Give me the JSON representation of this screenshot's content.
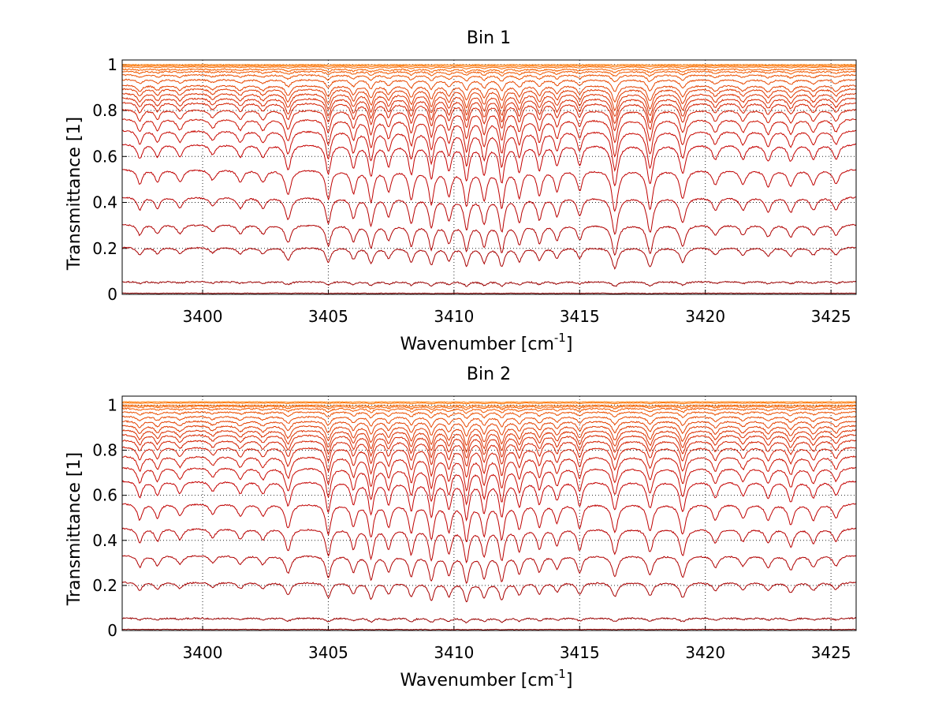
{
  "chart_data": [
    {
      "type": "line",
      "title": "Bin 1",
      "xlabel": "Wavenumber [cm",
      "xlabel_sup": "-1",
      "xlabel_tail": "]",
      "ylabel": "Transmittance [1]",
      "xlim": [
        3396.8,
        3426.0
      ],
      "ylim": [
        0,
        1.02
      ],
      "xticks": [
        3400,
        3405,
        3410,
        3415,
        3420,
        3425
      ],
      "yticks": [
        0,
        0.2,
        0.4,
        0.6,
        0.8,
        1
      ],
      "ytick_labels": [
        "0",
        "0.2",
        "0.4",
        "0.6",
        "0.8",
        "1"
      ],
      "grid": true,
      "series_colors": [
        "#8b0000",
        "#9a0000",
        "#a80000",
        "#b00000",
        "#b80000",
        "#bf0000",
        "#c40000",
        "#c80800",
        "#cc1000",
        "#d01800",
        "#d42000",
        "#d82800",
        "#dc3000",
        "#e03800",
        "#e44000",
        "#e84800",
        "#ec5000",
        "#f05800",
        "#f46000",
        "#f86800",
        "#fb7000",
        "#ff7a00"
      ],
      "series": [
        {
          "baseline": 0.005,
          "depth": 0.002
        },
        {
          "baseline": 0.055,
          "depth": 0.02
        },
        {
          "baseline": 0.205,
          "depth": 0.09
        },
        {
          "baseline": 0.305,
          "depth": 0.13
        },
        {
          "baseline": 0.425,
          "depth": 0.16
        },
        {
          "baseline": 0.545,
          "depth": 0.18
        },
        {
          "baseline": 0.655,
          "depth": 0.18
        },
        {
          "baseline": 0.715,
          "depth": 0.17
        },
        {
          "baseline": 0.765,
          "depth": 0.16
        },
        {
          "baseline": 0.805,
          "depth": 0.14
        },
        {
          "baseline": 0.835,
          "depth": 0.12
        },
        {
          "baseline": 0.855,
          "depth": 0.11
        },
        {
          "baseline": 0.875,
          "depth": 0.1
        },
        {
          "baseline": 0.895,
          "depth": 0.09
        },
        {
          "baseline": 0.91,
          "depth": 0.07
        },
        {
          "baseline": 0.935,
          "depth": 0.05
        },
        {
          "baseline": 0.955,
          "depth": 0.03
        },
        {
          "baseline": 0.97,
          "depth": 0.02
        },
        {
          "baseline": 0.98,
          "depth": 0.015
        },
        {
          "baseline": 0.99,
          "depth": 0.01
        },
        {
          "baseline": 0.995,
          "depth": 0.005
        },
        {
          "baseline": 1.0,
          "depth": 0.003
        }
      ],
      "absorption_lines": [
        {
          "x": 3397.5,
          "w": 0.3,
          "s": 0.35
        },
        {
          "x": 3398.2,
          "w": 0.3,
          "s": 0.3
        },
        {
          "x": 3399.1,
          "w": 0.35,
          "s": 0.3
        },
        {
          "x": 3400.4,
          "w": 0.35,
          "s": 0.25
        },
        {
          "x": 3401.5,
          "w": 0.35,
          "s": 0.3
        },
        {
          "x": 3402.4,
          "w": 0.35,
          "s": 0.3
        },
        {
          "x": 3403.4,
          "w": 0.35,
          "s": 0.6
        },
        {
          "x": 3405.0,
          "w": 0.3,
          "s": 0.7
        },
        {
          "x": 3406.0,
          "w": 0.3,
          "s": 0.55
        },
        {
          "x": 3406.7,
          "w": 0.3,
          "s": 0.75
        },
        {
          "x": 3407.4,
          "w": 0.3,
          "s": 0.5
        },
        {
          "x": 3408.3,
          "w": 0.3,
          "s": 0.7
        },
        {
          "x": 3409.1,
          "w": 0.3,
          "s": 0.8
        },
        {
          "x": 3409.8,
          "w": 0.3,
          "s": 0.6
        },
        {
          "x": 3410.5,
          "w": 0.3,
          "s": 0.85
        },
        {
          "x": 3411.2,
          "w": 0.3,
          "s": 0.7
        },
        {
          "x": 3411.9,
          "w": 0.3,
          "s": 0.9
        },
        {
          "x": 3412.6,
          "w": 0.3,
          "s": 0.65
        },
        {
          "x": 3413.4,
          "w": 0.3,
          "s": 0.6
        },
        {
          "x": 3414.1,
          "w": 0.3,
          "s": 0.5
        },
        {
          "x": 3415.0,
          "w": 0.3,
          "s": 0.5
        },
        {
          "x": 3416.4,
          "w": 0.35,
          "s": 1.0
        },
        {
          "x": 3417.8,
          "w": 0.35,
          "s": 0.95
        },
        {
          "x": 3419.1,
          "w": 0.35,
          "s": 0.7
        },
        {
          "x": 3420.4,
          "w": 0.35,
          "s": 0.35
        },
        {
          "x": 3421.5,
          "w": 0.35,
          "s": 0.35
        },
        {
          "x": 3422.5,
          "w": 0.35,
          "s": 0.4
        },
        {
          "x": 3423.4,
          "w": 0.35,
          "s": 0.4
        },
        {
          "x": 3424.3,
          "w": 0.35,
          "s": 0.35
        },
        {
          "x": 3425.2,
          "w": 0.35,
          "s": 0.35
        }
      ]
    },
    {
      "type": "line",
      "title": "Bin 2",
      "xlabel": "Wavenumber [cm",
      "xlabel_sup": "-1",
      "xlabel_tail": "]",
      "ylabel": "Transmittance [1]",
      "xlim": [
        3396.8,
        3426.0
      ],
      "ylim": [
        0,
        1.04
      ],
      "xticks": [
        3400,
        3405,
        3410,
        3415,
        3420,
        3425
      ],
      "yticks": [
        0,
        0.2,
        0.4,
        0.6,
        0.8,
        1
      ],
      "ytick_labels": [
        "0",
        "0.2",
        "0.4",
        "0.6",
        "0.8",
        "1"
      ],
      "grid": true,
      "series_colors": [
        "#8b0000",
        "#9a0000",
        "#a80000",
        "#b00000",
        "#b80000",
        "#bf0000",
        "#c40000",
        "#c80800",
        "#cc1000",
        "#d01800",
        "#d42000",
        "#d82800",
        "#dc3000",
        "#e03800",
        "#e44000",
        "#e84800",
        "#ec5000",
        "#f05800",
        "#f46000",
        "#f86800",
        "#fb7000",
        "#ff7a00"
      ],
      "series": [
        {
          "baseline": 0.005,
          "depth": 0.002
        },
        {
          "baseline": 0.055,
          "depth": 0.02
        },
        {
          "baseline": 0.215,
          "depth": 0.09
        },
        {
          "baseline": 0.335,
          "depth": 0.13
        },
        {
          "baseline": 0.455,
          "depth": 0.16
        },
        {
          "baseline": 0.565,
          "depth": 0.18
        },
        {
          "baseline": 0.665,
          "depth": 0.18
        },
        {
          "baseline": 0.725,
          "depth": 0.17
        },
        {
          "baseline": 0.775,
          "depth": 0.16
        },
        {
          "baseline": 0.815,
          "depth": 0.14
        },
        {
          "baseline": 0.845,
          "depth": 0.12
        },
        {
          "baseline": 0.87,
          "depth": 0.11
        },
        {
          "baseline": 0.89,
          "depth": 0.1
        },
        {
          "baseline": 0.91,
          "depth": 0.09
        },
        {
          "baseline": 0.93,
          "depth": 0.07
        },
        {
          "baseline": 0.95,
          "depth": 0.05
        },
        {
          "baseline": 0.97,
          "depth": 0.03
        },
        {
          "baseline": 0.985,
          "depth": 0.02
        },
        {
          "baseline": 0.995,
          "depth": 0.015
        },
        {
          "baseline": 1.0,
          "depth": 0.01
        },
        {
          "baseline": 1.01,
          "depth": 0.005
        },
        {
          "baseline": 1.015,
          "depth": 0.003
        }
      ],
      "absorption_lines": [
        {
          "x": 3397.5,
          "w": 0.3,
          "s": 0.4
        },
        {
          "x": 3398.2,
          "w": 0.3,
          "s": 0.35
        },
        {
          "x": 3399.1,
          "w": 0.35,
          "s": 0.3
        },
        {
          "x": 3400.4,
          "w": 0.35,
          "s": 0.25
        },
        {
          "x": 3401.5,
          "w": 0.35,
          "s": 0.3
        },
        {
          "x": 3402.4,
          "w": 0.35,
          "s": 0.3
        },
        {
          "x": 3403.4,
          "w": 0.35,
          "s": 0.6
        },
        {
          "x": 3405.0,
          "w": 0.3,
          "s": 0.75
        },
        {
          "x": 3406.0,
          "w": 0.3,
          "s": 0.55
        },
        {
          "x": 3406.7,
          "w": 0.3,
          "s": 0.8
        },
        {
          "x": 3407.4,
          "w": 0.3,
          "s": 0.55
        },
        {
          "x": 3408.3,
          "w": 0.3,
          "s": 0.7
        },
        {
          "x": 3409.1,
          "w": 0.3,
          "s": 0.85
        },
        {
          "x": 3409.8,
          "w": 0.3,
          "s": 0.65
        },
        {
          "x": 3410.5,
          "w": 0.3,
          "s": 0.9
        },
        {
          "x": 3411.2,
          "w": 0.3,
          "s": 0.75
        },
        {
          "x": 3411.9,
          "w": 0.3,
          "s": 0.85
        },
        {
          "x": 3412.6,
          "w": 0.3,
          "s": 0.6
        },
        {
          "x": 3413.4,
          "w": 0.3,
          "s": 0.55
        },
        {
          "x": 3414.1,
          "w": 0.3,
          "s": 0.45
        },
        {
          "x": 3415.0,
          "w": 0.3,
          "s": 0.6
        },
        {
          "x": 3416.4,
          "w": 0.35,
          "s": 0.7
        },
        {
          "x": 3417.8,
          "w": 0.35,
          "s": 0.65
        },
        {
          "x": 3419.1,
          "w": 0.35,
          "s": 0.75
        },
        {
          "x": 3420.4,
          "w": 0.35,
          "s": 0.4
        },
        {
          "x": 3421.5,
          "w": 0.35,
          "s": 0.35
        },
        {
          "x": 3422.5,
          "w": 0.35,
          "s": 0.4
        },
        {
          "x": 3423.4,
          "w": 0.35,
          "s": 0.5
        },
        {
          "x": 3424.3,
          "w": 0.35,
          "s": 0.4
        },
        {
          "x": 3425.2,
          "w": 0.35,
          "s": 0.35
        }
      ]
    }
  ]
}
